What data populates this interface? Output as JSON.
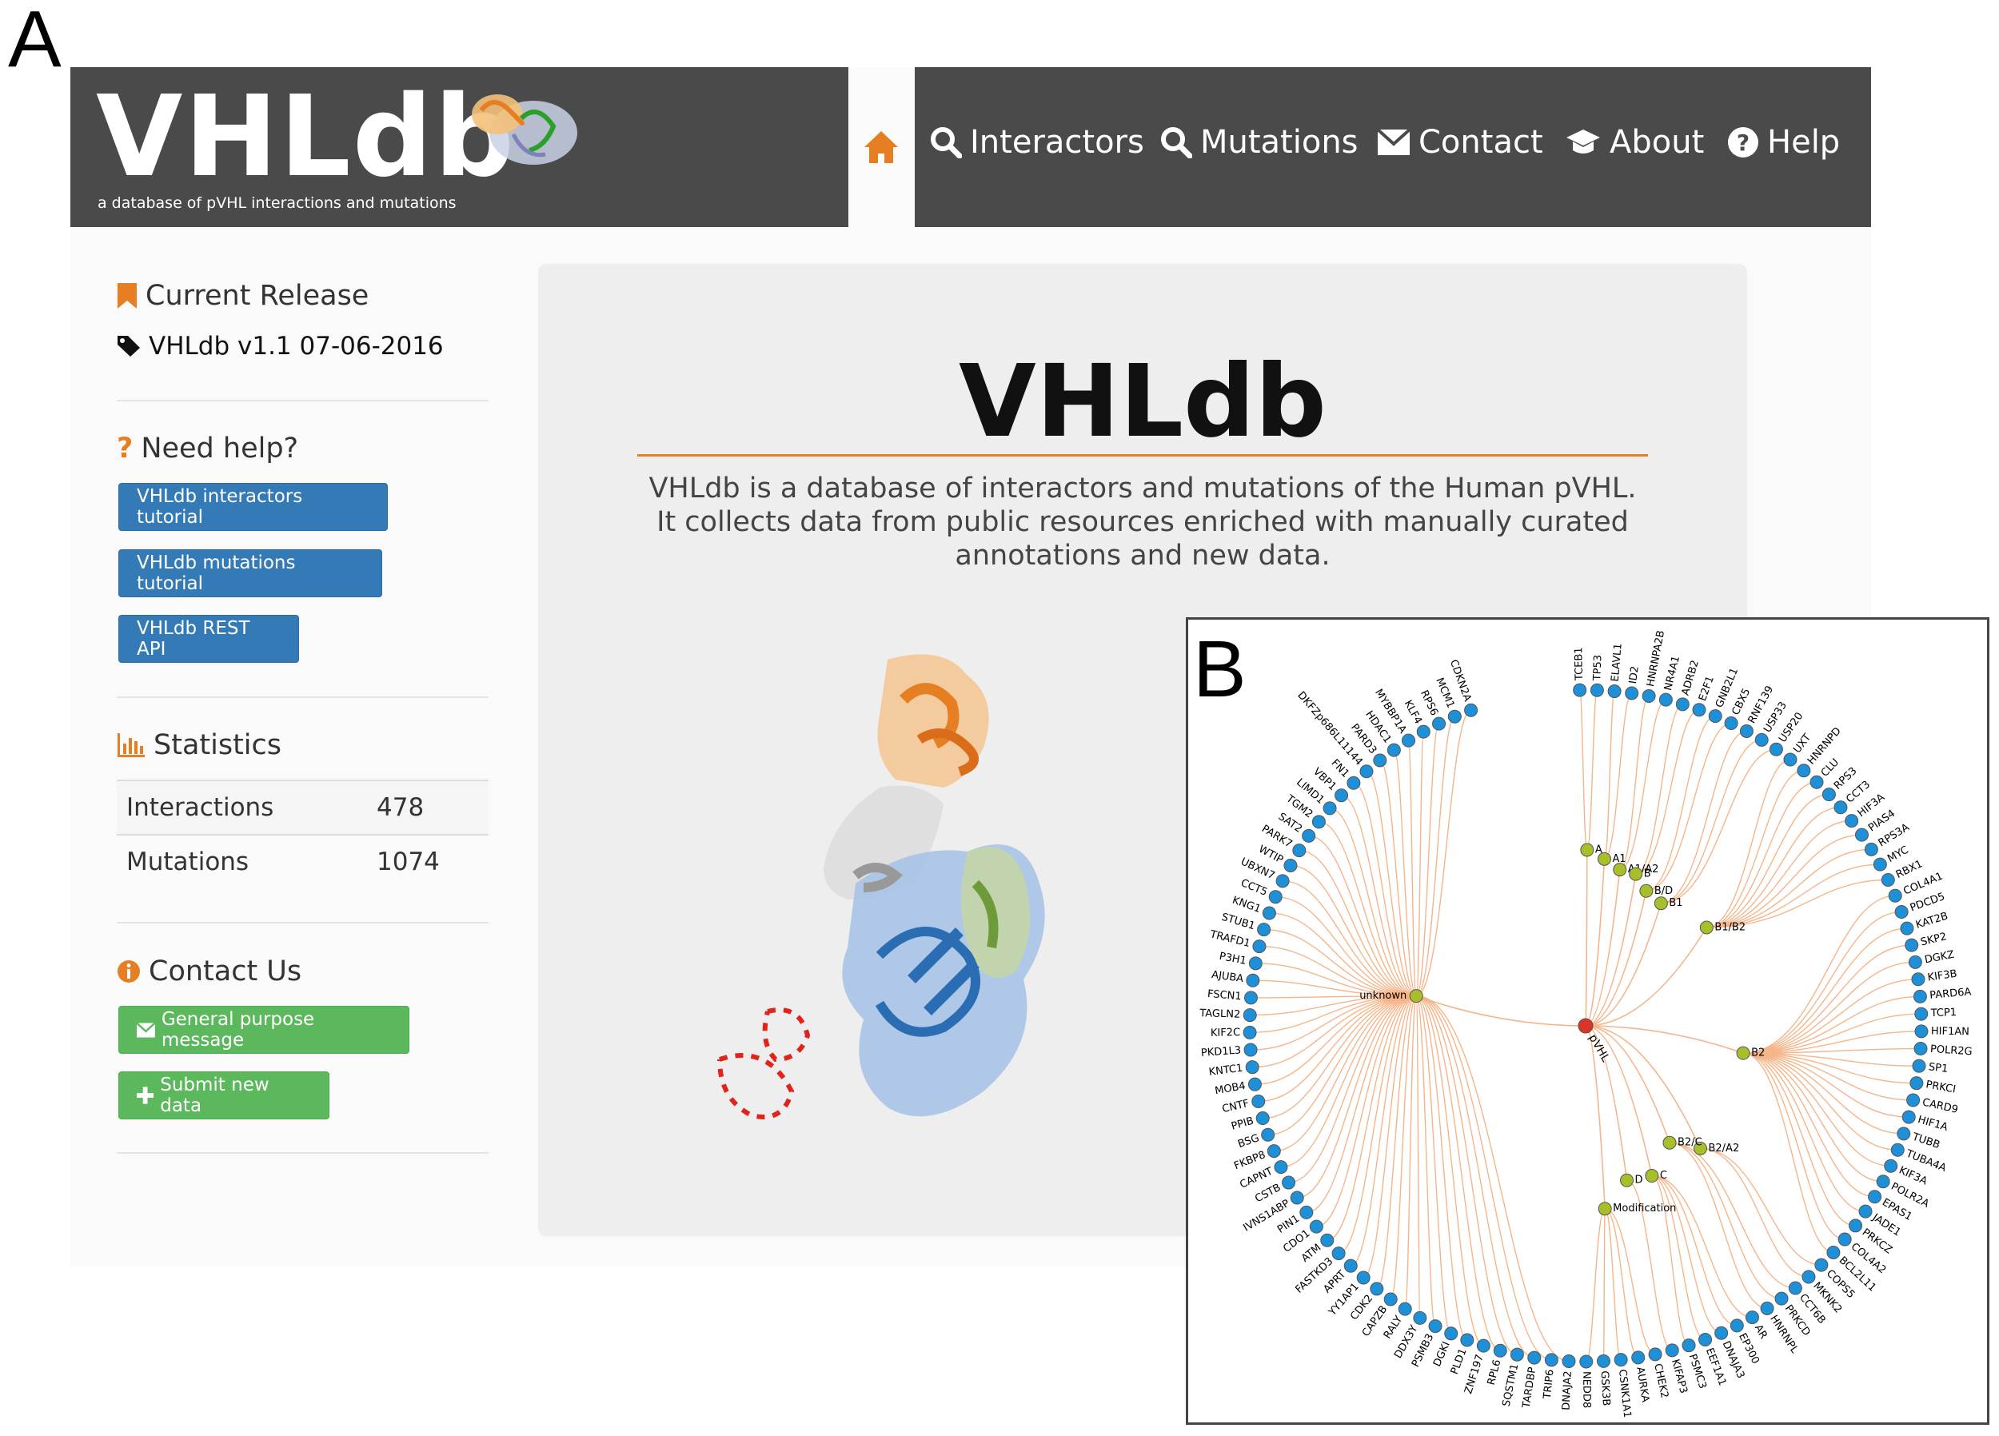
{
  "panel_labels": {
    "a": "A",
    "b": "B"
  },
  "header": {
    "logo": "VHLdb",
    "tagline": "a database of pVHL interactions and mutations",
    "nav": [
      "Interactors",
      "Mutations",
      "Contact",
      "About",
      "Help"
    ]
  },
  "sidebar": {
    "release_title": "Current Release",
    "release_value": "VHLdb v1.1 07-06-2016",
    "help_title": "Need help?",
    "help_buttons": [
      "VHLdb interactors tutorial",
      "VHLdb mutations tutorial",
      "VHLdb REST API"
    ],
    "stats_title": "Statistics",
    "stats": [
      {
        "label": "Interactions",
        "value": "478"
      },
      {
        "label": "Mutations",
        "value": "1074"
      }
    ],
    "contact_title": "Contact Us",
    "contact_buttons": [
      "General purpose message",
      "Submit new data"
    ]
  },
  "main": {
    "title": "VHLdb",
    "description": "VHLdb is a database of interactors and mutations of the Human pVHL. It collects data from public resources enriched with manually curated annotations and new data."
  },
  "tree": {
    "root": "pVHL",
    "groups": [
      {
        "name": "unknown",
        "leaves": [
          "DNAJA2",
          "TRIP6",
          "TARDBP",
          "SQSTM1",
          "RPL6",
          "ZNF197",
          "PLD1",
          "DGKI",
          "PSMB3",
          "DDX3Y",
          "RALY",
          "CAPZB",
          "CDK2",
          "YY1AP1",
          "APRT",
          "FASTKD3",
          "ATM",
          "CDO1",
          "PIN1",
          "IVNS1ABP",
          "CSTB",
          "CAPNT",
          "FKBP8",
          "BSG",
          "PPIB",
          "CNTF",
          "MOB4",
          "KNTC1",
          "PKD1L3",
          "KIF2C",
          "TAGLN2",
          "FSCN1",
          "AJUBA",
          "P3H1",
          "TRAFD1",
          "STUB1",
          "KNG1",
          "CCT5",
          "UBXN7",
          "WTIP",
          "PARK7",
          "SAT2",
          "TGM2",
          "LIMD1",
          "VBP1",
          "FN1",
          "DKFZp686L11144",
          "PARD3",
          "HDAC1",
          "MYBBP1A",
          "KLF4",
          "RPS6",
          "MCM1",
          "CDKN2A"
        ]
      },
      {
        "name": "A",
        "leaves": [
          "TCEB1",
          "TP53"
        ]
      },
      {
        "name": "A1",
        "leaves": [
          "ELAVL1",
          "ID2"
        ]
      },
      {
        "name": "A1/A2",
        "leaves": [
          "HNRNPA2B",
          "NR4A1"
        ]
      },
      {
        "name": "B",
        "leaves": [
          "ADRB2",
          "E2F1"
        ]
      },
      {
        "name": "B/D",
        "leaves": [
          "GNB2L1",
          "CBX5"
        ]
      },
      {
        "name": "B1",
        "leaves": [
          "RNF139",
          "USP33",
          "USP20"
        ]
      },
      {
        "name": "B1/B2",
        "leaves": [
          "UXT",
          "HNRNPD",
          "CLU",
          "RPS3",
          "CCT3",
          "HIF3A",
          "PIAS4",
          "RPS3A",
          "MYC",
          "RBX1"
        ]
      },
      {
        "name": "B2",
        "leaves": [
          "COL4A1",
          "PDCD5",
          "KAT2B",
          "SKP2",
          "DGKZ",
          "KIF3B",
          "PARD6A",
          "TCP1",
          "HIF1AN",
          "POLR2G",
          "SP1",
          "PRKCI",
          "CARD9",
          "HIF1A",
          "TUBB",
          "TUBA4A",
          "KIF3A",
          "POLR2A",
          "EPAS1",
          "JADE1",
          "PRKCZ",
          "COL4A2",
          "BCL2L11"
        ]
      },
      {
        "name": "B2/A2",
        "leaves": [
          "COPS5",
          "MKNK2"
        ]
      },
      {
        "name": "B2/C",
        "leaves": [
          "CCT6B",
          "PRKCD",
          "HNRNPL"
        ]
      },
      {
        "name": "C",
        "leaves": [
          "AR",
          "EP300",
          "DNAJA3",
          "EEF1A1",
          "PSMC3"
        ]
      },
      {
        "name": "D",
        "leaves": [
          "KIFAP3"
        ]
      },
      {
        "name": "Modification",
        "leaves": [
          "CHEK2",
          "AURKA",
          "CSNK1A1",
          "GSK3B",
          "NEDD8"
        ]
      }
    ]
  },
  "colors": {
    "header_bg": "#4a4a4a",
    "accent_orange": "#e67e22",
    "btn_blue": "#337ab7",
    "btn_green": "#5cb85c",
    "root_node": "#d9352b",
    "group_node": "#a8bf2a",
    "leaf_node": "#1e90d8",
    "edge": "#f5b58a"
  }
}
